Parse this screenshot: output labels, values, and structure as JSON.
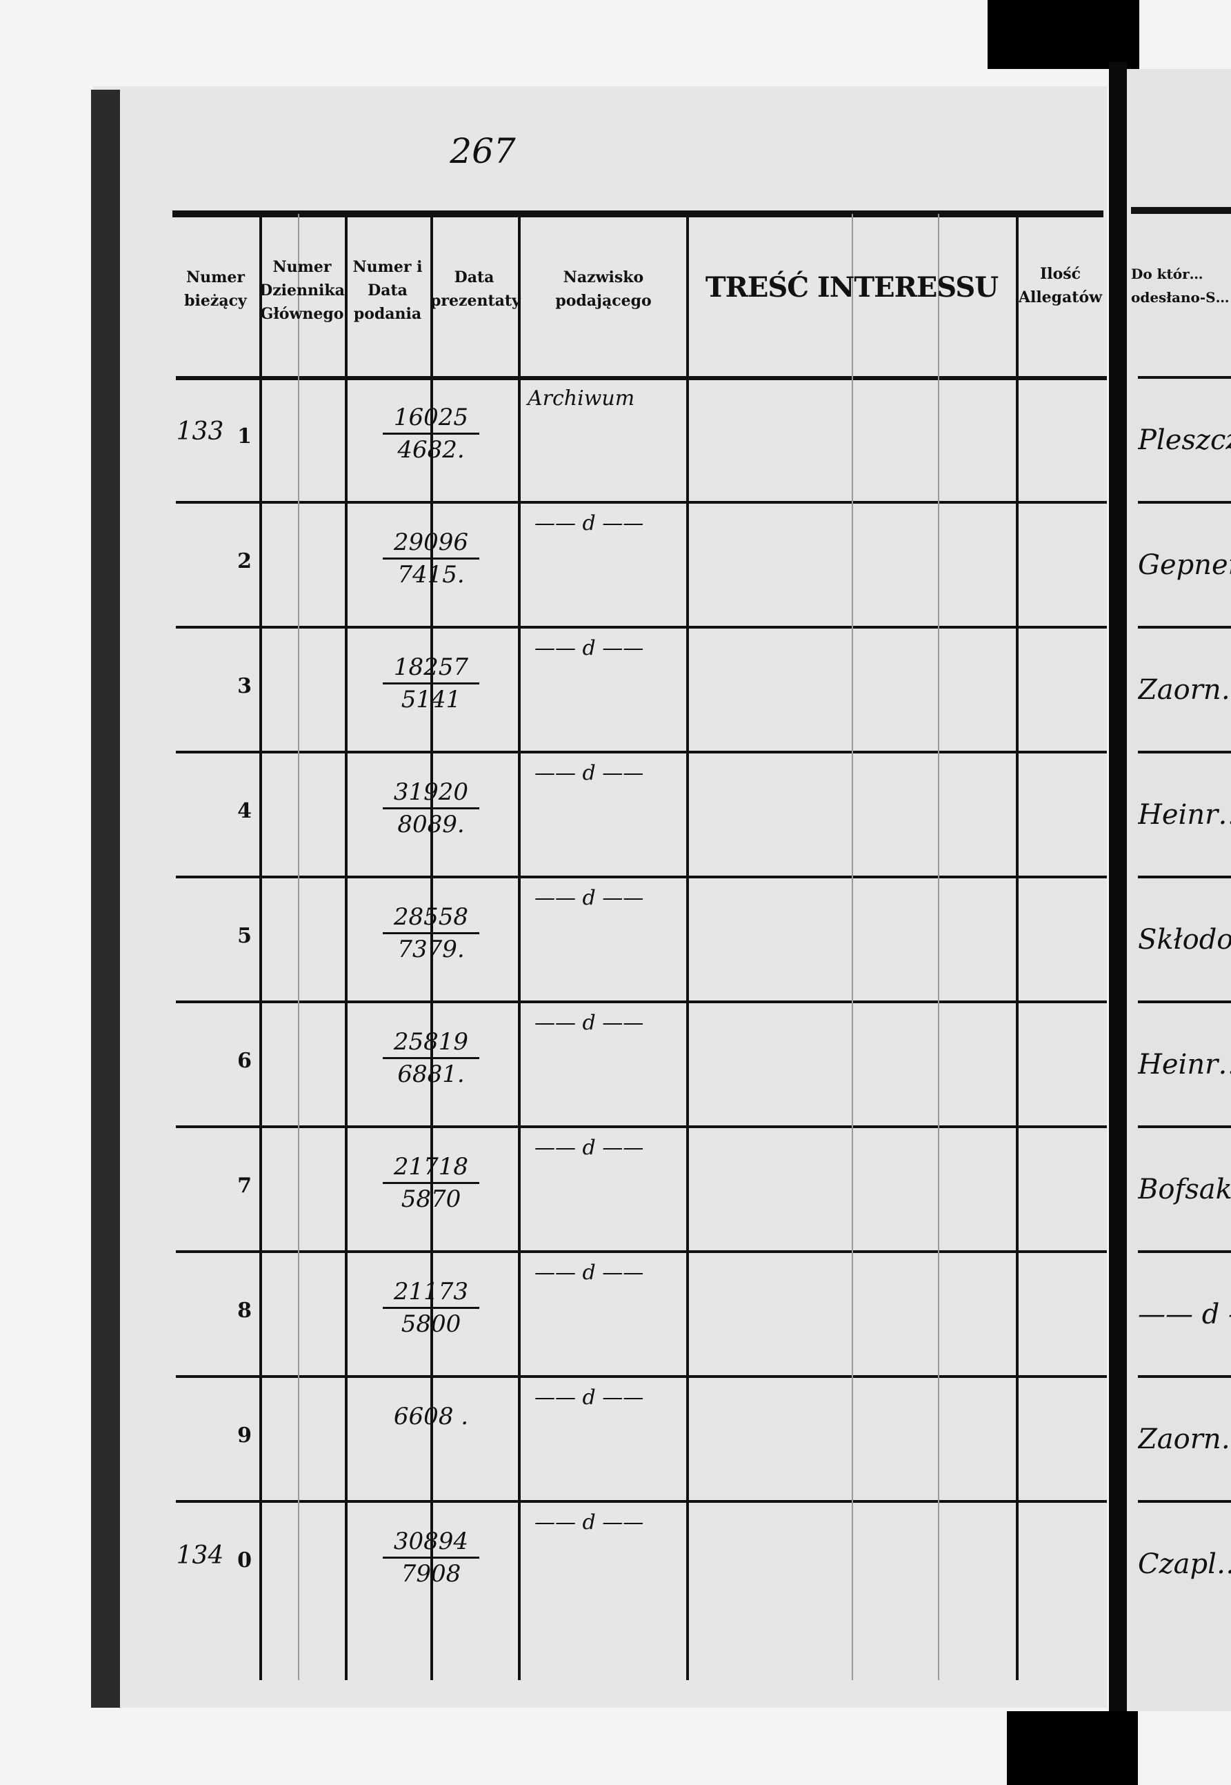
{
  "page_number_handwritten": "267",
  "header": {
    "columns": [
      {
        "label": "Numer bieżący"
      },
      {
        "label": "Numer Dziennika Głównego"
      },
      {
        "label": "Numer i Data podania"
      },
      {
        "label": "Data prezentaty"
      },
      {
        "label": "Nazwisko podającego"
      },
      {
        "label": "TREŚĆ INTERESSU"
      },
      {
        "label": "Ilość Allegatów"
      }
    ],
    "next_page_column": "Do któr… odesłano-S…"
  },
  "rows": [
    {
      "margin_note": "133",
      "num": "1",
      "numer_top": "16025",
      "numer_bottom": "4682.",
      "nazwisko": "Archiwum",
      "next_page": "Pleszcz…"
    },
    {
      "margin_note": "",
      "num": "2",
      "numer_top": "29096",
      "numer_bottom": "7415.",
      "nazwisko": "—— d ——",
      "next_page": "Gepner"
    },
    {
      "margin_note": "",
      "num": "3",
      "numer_top": "18257",
      "numer_bottom": "5141",
      "nazwisko": "—— d ——",
      "next_page": "Zaorn…"
    },
    {
      "margin_note": "",
      "num": "4",
      "numer_top": "31920",
      "numer_bottom": "8089.",
      "nazwisko": "—— d ——",
      "next_page": "Heinr…"
    },
    {
      "margin_note": "",
      "num": "5",
      "numer_top": "28558",
      "numer_bottom": "7379.",
      "nazwisko": "—— d ——",
      "next_page": "Skłodo…"
    },
    {
      "margin_note": "",
      "num": "6",
      "numer_top": "25819",
      "numer_bottom": "6881.",
      "nazwisko": "—— d ——",
      "next_page": "Heinr…"
    },
    {
      "margin_note": "",
      "num": "7",
      "numer_top": "21718",
      "numer_bottom": "5870",
      "nazwisko": "—— d ——",
      "next_page": "Bofsak…"
    },
    {
      "margin_note": "",
      "num": "8",
      "numer_top": "21173",
      "numer_bottom": "5800",
      "nazwisko": "—— d ——",
      "next_page": "—— d ——"
    },
    {
      "margin_note": "",
      "num": "9",
      "numer_top": "6608 .",
      "numer_bottom": "",
      "nazwisko": "—— d ——",
      "next_page": "Zaorn…"
    },
    {
      "margin_note": "134",
      "num": "0",
      "numer_top": "30894",
      "numer_bottom": "7908",
      "nazwisko": "—— d ——",
      "next_page": "Czapl…"
    }
  ]
}
